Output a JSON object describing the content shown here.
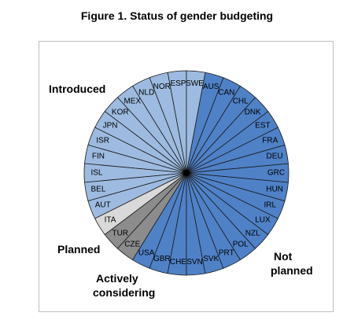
{
  "chart_data": {
    "type": "pie",
    "title": "Figure 1. Status of gender budgeting",
    "slice_unit": "one slice per country",
    "groups": [
      {
        "name": "Introduced",
        "color": "#9dbbe0",
        "countries": [
          "ESP",
          "NOR",
          "NLD",
          "MEX",
          "KOR",
          "JPN",
          "ISR",
          "FIN",
          "ISL",
          "BEL",
          "AUT"
        ]
      },
      {
        "name": "Planned",
        "color": "#d9d9d9",
        "countries": [
          "ITA"
        ]
      },
      {
        "name": "Actively considering",
        "color": "#8c8c8c",
        "countries": [
          "TUR",
          "CZE"
        ]
      },
      {
        "name": "Not planned",
        "color": "#4f81c7",
        "countries": [
          "USA",
          "GBR",
          "CHE",
          "SVN",
          "SVK",
          "PRT",
          "POL",
          "NZL",
          "LUX",
          "IRL",
          "HUN",
          "GRC",
          "DEU",
          "FRA",
          "EST",
          "DNK",
          "CHL",
          "CAN",
          "AUS"
        ]
      },
      {
        "name": "Introduced",
        "color": "#9dbbe0",
        "countries": [
          "SWE"
        ]
      }
    ],
    "labels": {
      "introduced": "Introduced",
      "planned": "Planned",
      "actively_considering_1": "Actively",
      "actively_considering_2": "considering",
      "not_planned_1": "Not",
      "not_planned_2": "planned"
    }
  }
}
